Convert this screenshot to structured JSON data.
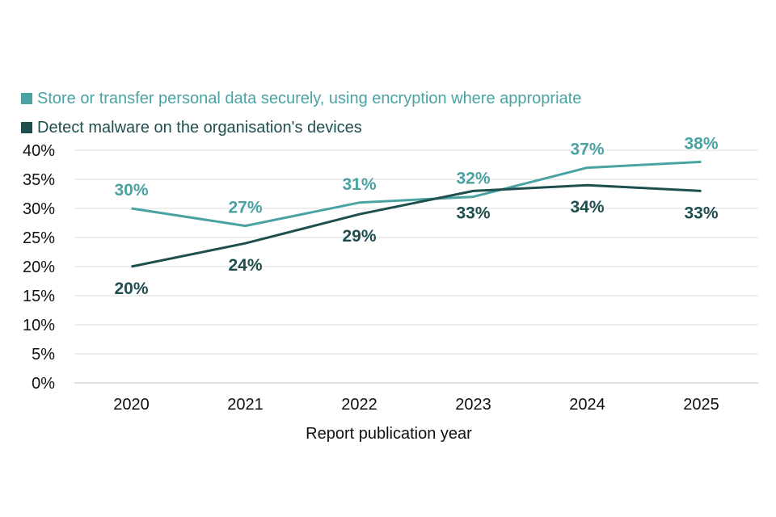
{
  "chart_data": {
    "type": "line",
    "title": "",
    "xlabel": "Report publication year",
    "ylabel": "",
    "categories": [
      "2020",
      "2021",
      "2022",
      "2023",
      "2024",
      "2025"
    ],
    "y_ticks": [
      "0%",
      "5%",
      "10%",
      "15%",
      "20%",
      "25%",
      "30%",
      "35%",
      "40%"
    ],
    "ylim": [
      0,
      40
    ],
    "grid": true,
    "legend_position": "top-left",
    "series": [
      {
        "name": "Store or transfer personal data securely, using encryption where appropriate",
        "color": "#4aa3a2",
        "values": [
          30,
          27,
          31,
          32,
          37,
          38
        ],
        "labels": [
          "30%",
          "27%",
          "31%",
          "32%",
          "37%",
          "38%"
        ],
        "label_position": "above"
      },
      {
        "name": "Detect malware on the organisation's devices",
        "color": "#1f4e4f",
        "values": [
          20,
          24,
          29,
          33,
          34,
          33
        ],
        "labels": [
          "20%",
          "24%",
          "29%",
          "33%",
          "34%",
          "33%"
        ],
        "label_position": "below"
      }
    ]
  }
}
